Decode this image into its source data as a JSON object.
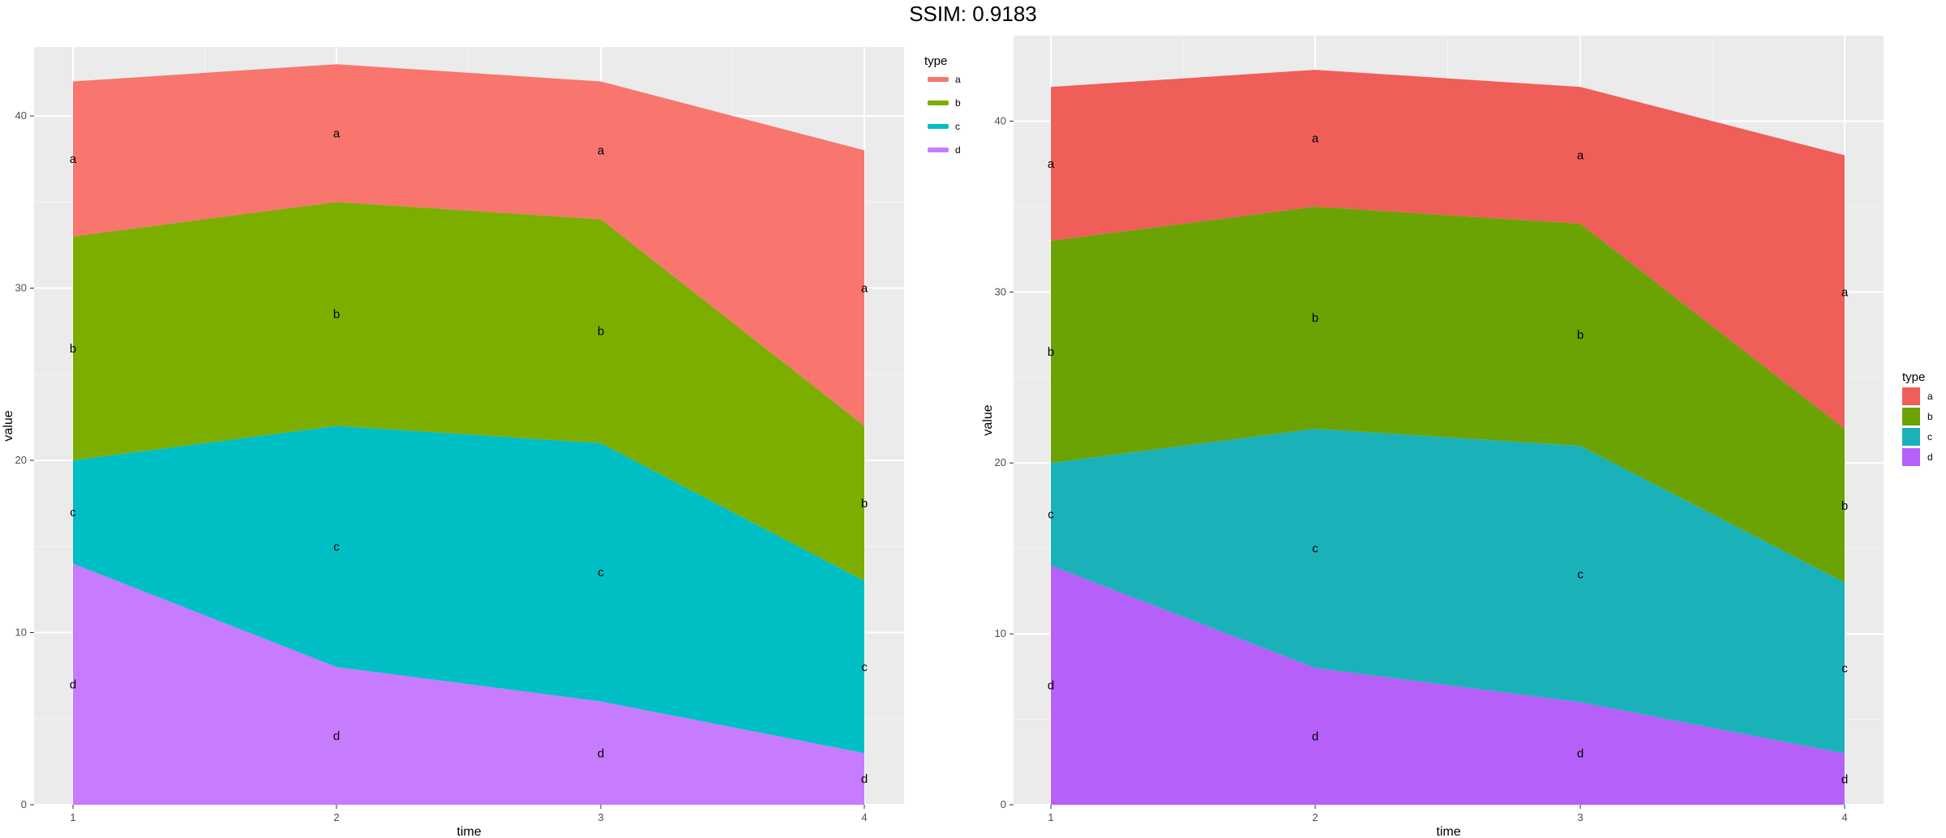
{
  "header": {
    "title": "SSIM: 0.9183"
  },
  "chart_data": [
    {
      "type": "area",
      "stacked": true,
      "xlabel": "time",
      "ylabel": "value",
      "x": [
        1,
        2,
        3,
        4
      ],
      "ylim": [
        0,
        44
      ],
      "yticks": [
        0,
        10,
        20,
        30,
        40
      ],
      "legend": {
        "title": "type",
        "placement": "top-right",
        "style": "line"
      },
      "series": [
        {
          "name": "d",
          "values": [
            14,
            8,
            6,
            3
          ],
          "color": "#C77CFF"
        },
        {
          "name": "c",
          "values": [
            6,
            14,
            15,
            10
          ],
          "color": "#00BFC4"
        },
        {
          "name": "b",
          "values": [
            13,
            13,
            13,
            9
          ],
          "color": "#7CAE00"
        },
        {
          "name": "a",
          "values": [
            9,
            8,
            8,
            16
          ],
          "color": "#F8766D"
        }
      ]
    },
    {
      "type": "area",
      "stacked": true,
      "xlabel": "time",
      "ylabel": "value",
      "x": [
        1,
        2,
        3,
        4
      ],
      "ylim": [
        0,
        45
      ],
      "yticks": [
        0,
        10,
        20,
        30,
        40
      ],
      "legend": {
        "title": "type",
        "placement": "right",
        "style": "box"
      },
      "series": [
        {
          "name": "d",
          "values": [
            14,
            8,
            6,
            3
          ],
          "color": "#B660FA"
        },
        {
          "name": "c",
          "values": [
            6,
            14,
            15,
            10
          ],
          "color": "#1AB2B8"
        },
        {
          "name": "b",
          "values": [
            13,
            13,
            13,
            9
          ],
          "color": "#6BA305"
        },
        {
          "name": "a",
          "values": [
            9,
            8,
            8,
            16
          ],
          "color": "#F05E59"
        }
      ]
    }
  ]
}
